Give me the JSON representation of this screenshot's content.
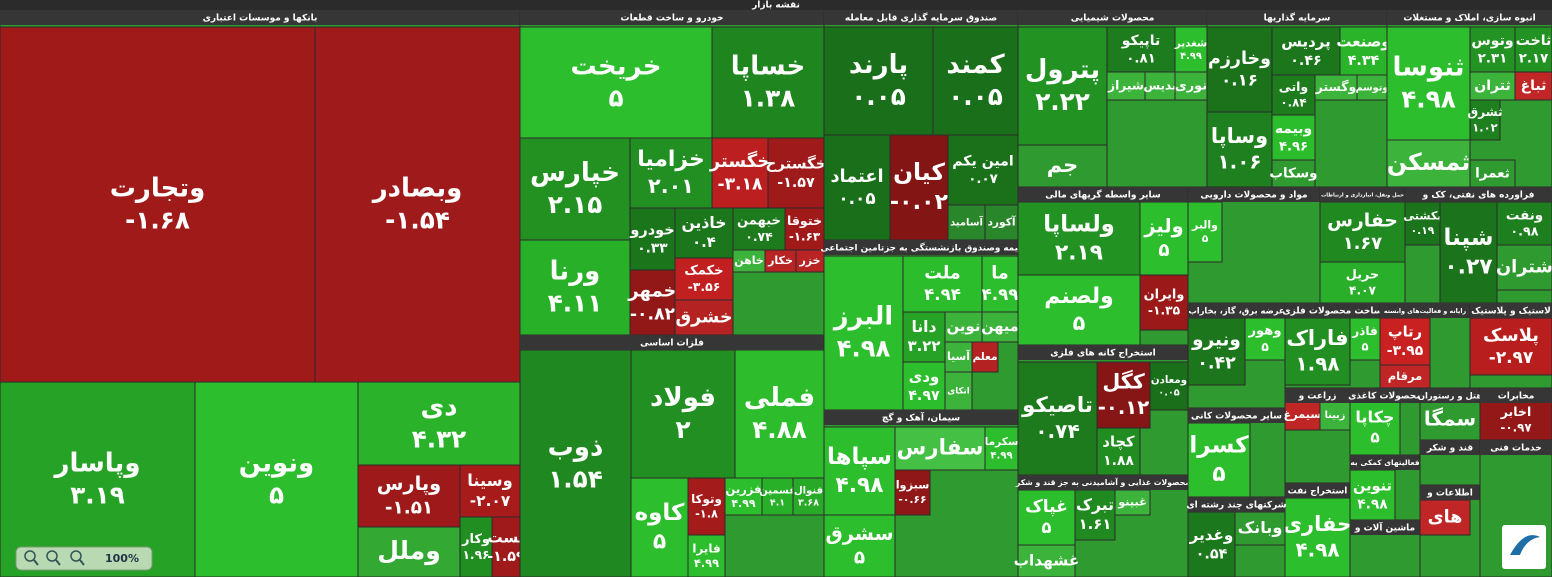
{
  "header": {
    "title": "نقشه بازار"
  },
  "sectors": [
    {
      "title": "بانکها و موسسات اعتباری",
      "tiles": [
        {
          "name": "وتجارت",
          "change": "-۱.۶۸"
        },
        {
          "name": "وبصادر",
          "change": "-۱.۵۴"
        },
        {
          "name": "وپاسار",
          "change": "۳.۱۹"
        },
        {
          "name": "ونوین",
          "change": "۵"
        },
        {
          "name": "دی",
          "change": "۴.۳۲"
        },
        {
          "name": "وپارس",
          "change": "-۱.۵۱"
        },
        {
          "name": "وسینا",
          "change": "-۲.۰۷"
        },
        {
          "name": "وملل",
          "color": "#33a833"
        },
        {
          "name": "وکار",
          "change": "۱.۹۶"
        },
        {
          "name": "پست",
          "change": "-۱.۵۹"
        }
      ]
    },
    {
      "title": "خودرو و ساخت قطعات",
      "tiles": [
        {
          "name": "خریخت",
          "change": "۵"
        },
        {
          "name": "خساپا",
          "change": "۱.۳۸"
        },
        {
          "name": "خپارس",
          "change": "۲.۱۵"
        },
        {
          "name": "خزامیا",
          "change": "۲.۰۱"
        },
        {
          "name": "خگستر",
          "change": "-۳.۱۸"
        },
        {
          "name": "خگسترح",
          "change": "-۱.۵۷"
        },
        {
          "name": "ورنا",
          "change": "۴.۱۱"
        },
        {
          "name": "خودرو",
          "change": "۰.۳۳"
        },
        {
          "name": "خاذین",
          "change": "۰.۴"
        },
        {
          "name": "خبهمن",
          "change": "۰.۷۴"
        },
        {
          "name": "ختوقا",
          "change": "-۱.۶۳"
        },
        {
          "name": "خمهر",
          "change": "-۰.۸۲"
        },
        {
          "name": "خکمک",
          "change": "-۳.۵۶"
        },
        {
          "name": "خشرق",
          "color": "#b52222"
        },
        {
          "name": "خاهن",
          "color": "#3cb43c"
        },
        {
          "name": "خکار",
          "color": "#b82424"
        },
        {
          "name": "خزر",
          "color": "#b82424"
        }
      ]
    },
    {
      "title": "فلزات اساسی",
      "tiles": [
        {
          "name": "ذوب",
          "change": "۱.۵۴"
        },
        {
          "name": "فولاد",
          "change": "۲"
        },
        {
          "name": "فملی",
          "change": "۴.۸۸"
        },
        {
          "name": "کاوه",
          "change": "۵"
        },
        {
          "name": "وتوکا",
          "change": "-۱.۸"
        },
        {
          "name": "فزرین",
          "change": "۴.۹۹"
        },
        {
          "name": "فسمین",
          "change": "۴.۱"
        },
        {
          "name": "فنوال",
          "change": "۳.۶۸"
        },
        {
          "name": "فایرا",
          "change": "۴.۹۹"
        }
      ]
    },
    {
      "title": "صندوق سرمایه گذاری قابل معامله",
      "tiles": [
        {
          "name": "پارند",
          "change": "۰.۰۵"
        },
        {
          "name": "کمند",
          "change": "۰.۰۵"
        },
        {
          "name": "اعتماد",
          "change": "۰.۰۵"
        },
        {
          "name": "کیان",
          "change": "-۰.۰۲"
        },
        {
          "name": "امین یکم",
          "change": "۰.۰۷"
        },
        {
          "name": "آسامید",
          "color": "#2a862a"
        },
        {
          "name": "آکورد",
          "color": "#2a862a"
        }
      ]
    },
    {
      "title": "بیمه وصندوق بازنشستگی به جزتامین اجتماعی",
      "tiles": [
        {
          "name": "البرز",
          "change": "۴.۹۸"
        },
        {
          "name": "ملت",
          "change": "۴.۹۴"
        },
        {
          "name": "ما",
          "change": "۴.۹۹"
        },
        {
          "name": "دانا",
          "change": "۳.۲۲"
        },
        {
          "name": "نوین",
          "color": "#3cb43c"
        },
        {
          "name": "میهن",
          "color": "#3cb43c"
        },
        {
          "name": "ودی",
          "change": "۴.۹۷"
        },
        {
          "name": "آسیا",
          "color": "#3cb43c"
        },
        {
          "name": "معلم",
          "color": "#b52222"
        },
        {
          "name": "اتکای",
          "color": "#3cb43c"
        }
      ]
    },
    {
      "title": "سیمان، آهک و گچ",
      "tiles": [
        {
          "name": "سپاها",
          "change": "۴.۹۸"
        },
        {
          "name": "سفارس",
          "color": "#44c044"
        },
        {
          "name": "سکرما",
          "change": "۴.۹۹"
        },
        {
          "name": "سبزوا",
          "change": "-۰.۶۶"
        },
        {
          "name": "سشرق",
          "change": "۵"
        }
      ]
    },
    {
      "title": "محصولات شیمیایی",
      "tiles": [
        {
          "name": "پترول",
          "change": "۲.۲۲"
        },
        {
          "name": "تاپیکو",
          "change": "۰.۸۱"
        },
        {
          "name": "شغدیر",
          "change": "۴.۹۹"
        },
        {
          "name": "شیراز",
          "color": "#3cb43c"
        },
        {
          "name": "بدیس",
          "color": "#3cb43c"
        },
        {
          "name": "نوری",
          "color": "#3cb43c"
        },
        {
          "name": "جم",
          "color": "#2f9a2f"
        }
      ]
    },
    {
      "title": "سرمایه گذاریها",
      "tiles": [
        {
          "name": "وخارزم",
          "change": "۰.۱۶"
        },
        {
          "name": "پردیس",
          "change": "۰.۴۶"
        },
        {
          "name": "وصنعت",
          "change": "۴.۳۴"
        },
        {
          "name": "وساپا",
          "change": "۱.۰۶"
        },
        {
          "name": "واتی",
          "change": "۰.۸۴"
        },
        {
          "name": "وگستر",
          "color": "#3cb43c"
        },
        {
          "name": "وتوسم",
          "color": "#3cb43c"
        },
        {
          "name": "وبیمه",
          "change": "۴.۹۶"
        },
        {
          "name": "وسکاب",
          "color": "#2f9a2f"
        }
      ]
    },
    {
      "title": "انبوه سازی، املاک و مستغلات",
      "tiles": [
        {
          "name": "ثنوسا",
          "change": "۴.۹۸"
        },
        {
          "name": "وتوس",
          "change": "۲.۳۱"
        },
        {
          "name": "ثاخت",
          "change": "۲.۱۷"
        },
        {
          "name": "ثتران",
          "color": "#3cb43c"
        },
        {
          "name": "ثباغ",
          "color": "#c02626"
        },
        {
          "name": "ثشرق",
          "change": "۱.۰۲"
        },
        {
          "name": "ثمسکن",
          "color": "#3cb43c"
        },
        {
          "name": "ثعمرا",
          "color": "#2f9a2f"
        }
      ]
    },
    {
      "title": "سایر واسطه گریهای مالی",
      "tiles": [
        {
          "name": "ولساپا",
          "change": "۲.۱۹"
        },
        {
          "name": "ولیز",
          "change": "۵"
        },
        {
          "name": "ولصنم",
          "change": "۵"
        },
        {
          "name": "وایران",
          "change": "-۱.۳۵"
        }
      ]
    },
    {
      "title": "مواد و محصولات دارویی",
      "tiles": [
        {
          "name": "والبر",
          "change": "۵"
        }
      ]
    },
    {
      "title": "حمل ونقل، انبارداری و ارتباطات",
      "tiles": [
        {
          "name": "حفارس",
          "change": "۱.۶۷"
        },
        {
          "name": "حریل",
          "change": "۴.۰۷"
        }
      ]
    },
    {
      "title": "فراورده های نفتی، کک و",
      "tiles": [
        {
          "name": "بکشتی",
          "change": "۰.۱۹"
        },
        {
          "name": "شپنا",
          "change": "۰.۲۷"
        },
        {
          "name": "ونفت",
          "change": "۰.۹۸"
        },
        {
          "name": "شتران",
          "color": "#2f9a2f"
        }
      ]
    },
    {
      "title": "استخراج کانه های فلزی",
      "tiles": [
        {
          "name": "تاصیکو",
          "change": "۰.۷۴"
        },
        {
          "name": "کگل",
          "change": "-۰.۱۲"
        },
        {
          "name": "ومعادن",
          "change": "۰.۰۵"
        },
        {
          "name": "کچاد",
          "change": "۱.۸۸"
        }
      ]
    },
    {
      "title": "محصولات غذایی و آشامیدنی به جز قند و شکر",
      "tiles": [
        {
          "name": "غپاک",
          "change": "۵"
        },
        {
          "name": "غشهداب",
          "color": "#3cb43c"
        },
        {
          "name": "تبرک",
          "change": "۱.۶۱"
        },
        {
          "name": "غبینو",
          "color": "#3cb43c"
        }
      ]
    },
    {
      "title": "عرضه برق، گاز، بخاراب",
      "tiles": [
        {
          "name": "ونیرو",
          "change": "۰.۴۲"
        },
        {
          "name": "وهور",
          "change": "۵"
        }
      ]
    },
    {
      "title": "ساخت محصولات فلزی",
      "tiles": [
        {
          "name": "فاراک",
          "change": "۱.۹۸"
        },
        {
          "name": "فاذر",
          "change": "۵"
        }
      ]
    },
    {
      "title": "رایانه و فعالیت‌های وابسته",
      "tiles": [
        {
          "name": "رتاپ",
          "change": "-۳.۹۵"
        },
        {
          "name": "مرقام",
          "color": "#c02626"
        }
      ]
    },
    {
      "title": "لاستیک و پلاستیک",
      "tiles": [
        {
          "name": "پلاسک",
          "change": "-۲.۹۷"
        }
      ]
    },
    {
      "title": "سایر محصولات کانی",
      "tiles": [
        {
          "name": "کسرا",
          "change": "۵"
        }
      ]
    },
    {
      "title": "زراعت و",
      "tiles": [
        {
          "name": "سیمرغ",
          "color": "#c02626"
        },
        {
          "name": "زبینا",
          "color": "#3cb43c"
        }
      ]
    },
    {
      "title": "محصولات کاغذی",
      "tiles": [
        {
          "name": "چکاپا",
          "change": "۵"
        }
      ]
    },
    {
      "title": "هتل و رستوران",
      "tiles": [
        {
          "name": "سمگا",
          "color": "#2f9a2f"
        }
      ]
    },
    {
      "title": "مخابرات",
      "tiles": [
        {
          "name": "اخابر",
          "change": "-۰.۹۷"
        }
      ]
    },
    {
      "title": "استخراج نفت",
      "tiles": [
        {
          "name": "حفاری",
          "change": "۴.۹۸"
        }
      ]
    },
    {
      "title": "شرکتهای چند رشته ای",
      "tiles": [
        {
          "name": "وغدیر",
          "change": "۰.۵۴"
        },
        {
          "name": "وبانک",
          "color": "#2f9a2f"
        }
      ]
    },
    {
      "title": "فعالیتهای کمکی به",
      "tiles": [
        {
          "name": "تنوین",
          "change": "۴.۹۸"
        }
      ]
    },
    {
      "title": "ماشین آلات و",
      "tiles": []
    },
    {
      "title": "قند و شکر",
      "tiles": []
    },
    {
      "title": "اطلاعات و",
      "tiles": [
        {
          "name": "های",
          "color": "#c02626"
        }
      ]
    },
    {
      "title": "خدمات فنی",
      "tiles": []
    }
  ],
  "zoom": {
    "label": "100%"
  }
}
